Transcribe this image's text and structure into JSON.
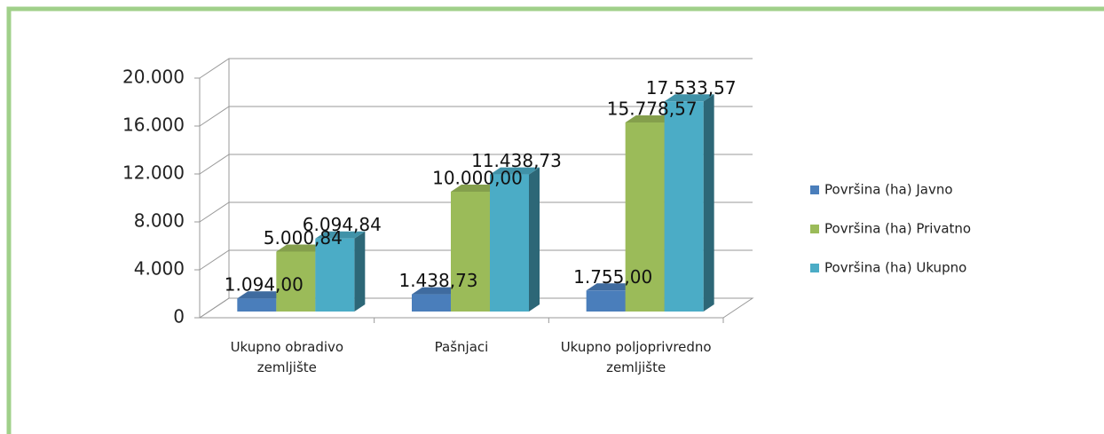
{
  "chart_data": {
    "type": "bar3d",
    "categories": [
      "Ukupno obradivo zemljište",
      "Pašnjaci",
      "Ukupno poljoprivredno zemljište"
    ],
    "series": [
      {
        "name": "Površina (ha) Javno",
        "color": "#4a7ebb",
        "values": [
          1094.0,
          1438.73,
          1755.0
        ],
        "value_labels": [
          "1.094,00",
          "1.438,73",
          "1.755,00"
        ]
      },
      {
        "name": "Površina (ha) Privatno",
        "color": "#9bbb59",
        "values": [
          5000.84,
          10000.0,
          15778.57
        ],
        "value_labels": [
          "5.000,84",
          "10.000,00",
          "15.778,57"
        ]
      },
      {
        "name": "Površina (ha) Ukupno",
        "color": "#4bacc6",
        "values": [
          6094.84,
          11438.73,
          17533.57
        ],
        "value_labels": [
          "6.094,84",
          "11.438,73",
          "17.533,57"
        ]
      }
    ],
    "ylim": [
      0,
      20000
    ],
    "yticks": [
      0,
      {
        "value": 4000,
        "label": "4.000"
      },
      {
        "value": 8000,
        "label": "8.000"
      },
      {
        "value": 12000,
        "label": "12.000"
      },
      {
        "value": 16000,
        "label": "16.000"
      },
      {
        "value": 20000,
        "label": "20.000"
      }
    ],
    "grid": true,
    "legend": "right"
  }
}
